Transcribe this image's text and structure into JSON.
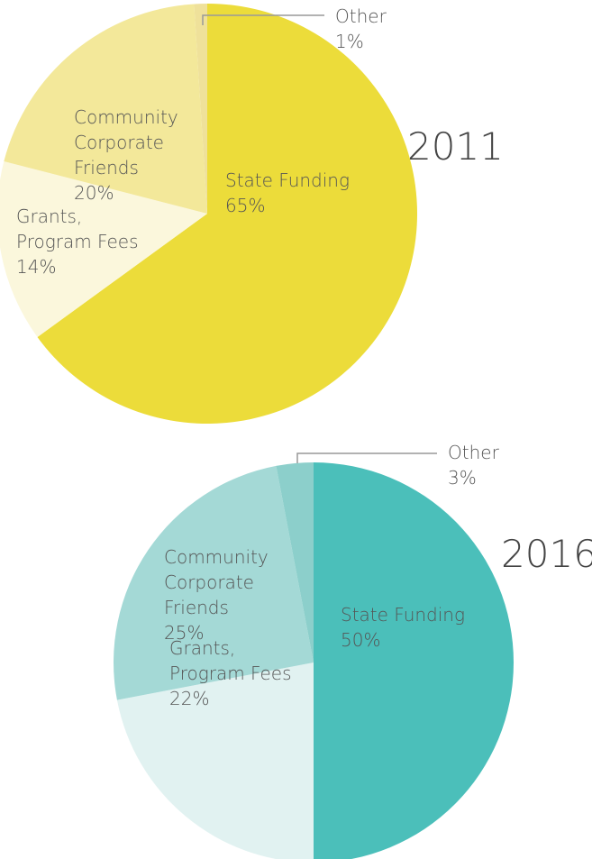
{
  "chart_data": [
    {
      "type": "pie",
      "title": "2011",
      "categories": [
        "State Funding",
        "Grants, Program Fees",
        "Community Corporate Friends",
        "Other"
      ],
      "values": [
        65,
        14,
        20,
        1
      ],
      "value_labels": [
        "65%",
        "14%",
        "20%",
        "1%"
      ],
      "colors": [
        "#ecdc3a",
        "#fbf7dc",
        "#f3e89a",
        "#efe19a"
      ]
    },
    {
      "type": "pie",
      "title": "2016",
      "categories": [
        "State Funding",
        "Grants, Program Fees",
        "Community Corporate Friends",
        "Other"
      ],
      "values": [
        50,
        22,
        25,
        3
      ],
      "value_labels": [
        "50%",
        "22%",
        "25%",
        "3%"
      ],
      "colors": [
        "#4bbfba",
        "#e1f2f1",
        "#a4d9d6",
        "#8ccfcb"
      ]
    }
  ]
}
